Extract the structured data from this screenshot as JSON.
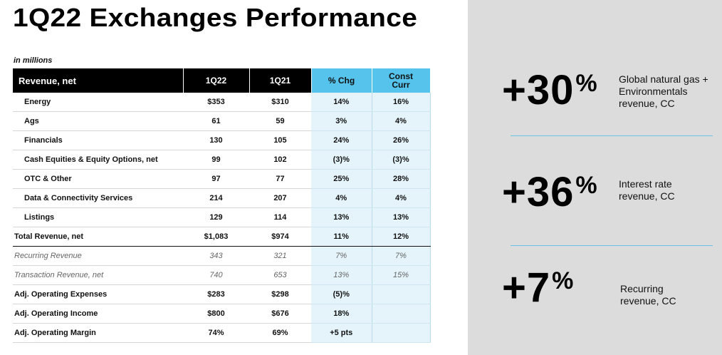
{
  "title": "1Q22 Exchanges Performance",
  "units": "in millions",
  "table": {
    "headers": {
      "label": "Revenue, net",
      "c1": "1Q22",
      "c2": "1Q21",
      "c3": "% Chg",
      "c4a": "Const",
      "c4b": "Curr"
    },
    "rows": [
      {
        "label": "Energy",
        "c1": "$353",
        "c2": "$310",
        "c3": "14%",
        "c4": "16%"
      },
      {
        "label": "Ags",
        "c1": "61",
        "c2": "59",
        "c3": "3%",
        "c4": "4%"
      },
      {
        "label": "Financials",
        "c1": "130",
        "c2": "105",
        "c3": "24%",
        "c4": "26%"
      },
      {
        "label": "Cash Equities & Equity Options, net",
        "c1": "99",
        "c2": "102",
        "c3": "(3)%",
        "c4": "(3)%"
      },
      {
        "label": "OTC & Other",
        "c1": "97",
        "c2": "77",
        "c3": "25%",
        "c4": "28%"
      },
      {
        "label": "Data & Connectivity Services",
        "c1": "214",
        "c2": "207",
        "c3": "4%",
        "c4": "4%"
      },
      {
        "label": "Listings",
        "c1": "129",
        "c2": "114",
        "c3": "13%",
        "c4": "13%"
      },
      {
        "label": "Total Revenue, net",
        "c1": "$1,083",
        "c2": "$974",
        "c3": "11%",
        "c4": "12%"
      },
      {
        "label": "Recurring Revenue",
        "c1": "343",
        "c2": "321",
        "c3": "7%",
        "c4": "7%"
      },
      {
        "label": "Transaction Revenue, net",
        "c1": "740",
        "c2": "653",
        "c3": "13%",
        "c4": "15%"
      },
      {
        "label": "Adj. Operating Expenses",
        "c1": "$283",
        "c2": "$298",
        "c3": "(5)%",
        "c4": ""
      },
      {
        "label": "Adj. Operating Income",
        "c1": "$800",
        "c2": "$676",
        "c3": "18%",
        "c4": ""
      },
      {
        "label": "Adj. Operating Margin",
        "c1": "74%",
        "c2": "69%",
        "c3": "+5 pts",
        "c4": ""
      }
    ]
  },
  "callouts": [
    {
      "value": "+30",
      "unit": "%",
      "text": "Global natural gas +\nEnvironmentals\nrevenue, CC"
    },
    {
      "value": "+36",
      "unit": "%",
      "text": "Interest rate\nrevenue, CC"
    },
    {
      "value": "+7",
      "unit": "%",
      "text": "Recurring\nrevenue, CC"
    }
  ]
}
